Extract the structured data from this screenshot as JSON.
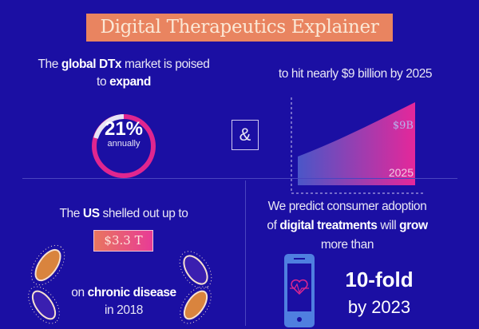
{
  "title": "Digital Therapeutics Explainer",
  "market": {
    "pre": "The ",
    "b1": "global DTx",
    "mid": " market is poised",
    "line2_pre": "to ",
    "b2": "expand",
    "rate": "21%",
    "rate_label": "annually",
    "rate_fraction": 0.21
  },
  "connector": "&",
  "forecast": {
    "text": "to hit nearly $9 billion by 2025",
    "value_label": "$9B",
    "year_label": "2025"
  },
  "us": {
    "pre": "The ",
    "b1": "US",
    "post": " shelled out up to",
    "amount": "$3.3 T",
    "line3_pre": "on ",
    "b2": "chronic disease",
    "line4": "in 2018"
  },
  "adoption": {
    "l1": "We predict consumer adoption",
    "l2_pre": "of ",
    "b1": "digital treatments",
    "l2_mid": " will ",
    "b2": "grow",
    "l3": "more than",
    "fold": "10-fold",
    "by": "by 2023"
  },
  "colors": {
    "background": "#1b0fa3",
    "title_bg": "#e98460",
    "accent": "#e0268f"
  }
}
